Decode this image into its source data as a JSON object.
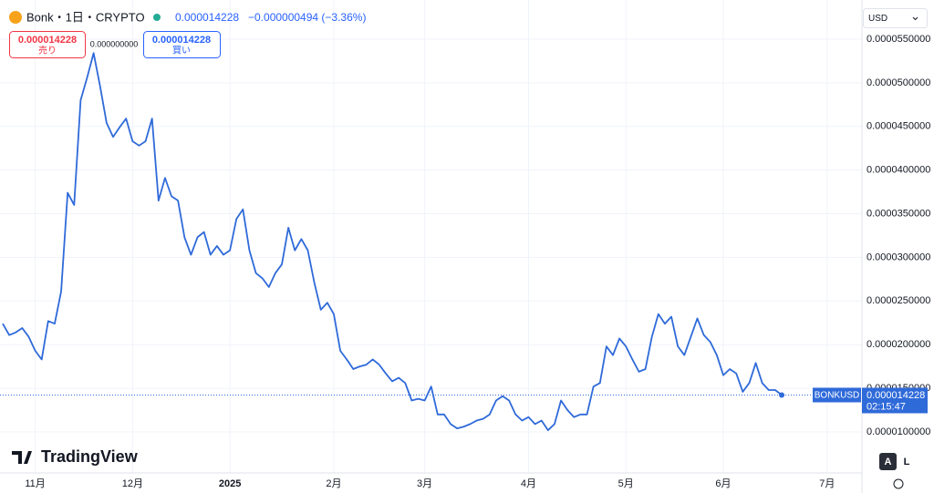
{
  "header": {
    "symbol": "Bonk・1日・CRYPTO",
    "price": "0.000014228",
    "change": "−0.000000494 (−3.36%)",
    "sell_price": "0.000014228",
    "sell_label": "売り",
    "spread": "0.000000000",
    "buy_price": "0.000014228",
    "buy_label": "買い",
    "currency": "USD",
    "logo": "TradingView",
    "scale_auto": "A",
    "scale_log": "L"
  },
  "chart_data": {
    "type": "line",
    "categories": [
      null,
      null,
      null,
      null,
      null,
      "11月",
      null,
      null,
      null,
      null,
      null,
      null,
      null,
      null,
      null,
      null,
      null,
      null,
      null,
      null,
      "12月",
      null,
      null,
      null,
      null,
      null,
      null,
      null,
      null,
      null,
      null,
      null,
      null,
      null,
      null,
      "2025",
      null,
      null,
      null,
      null,
      null,
      null,
      null,
      null,
      null,
      null,
      null,
      null,
      null,
      null,
      null,
      "2月",
      null,
      null,
      null,
      null,
      null,
      null,
      null,
      null,
      null,
      null,
      null,
      null,
      null,
      "3月",
      null,
      null,
      null,
      null,
      null,
      null,
      null,
      null,
      null,
      null,
      null,
      null,
      null,
      null,
      null,
      "4月",
      null,
      null,
      null,
      null,
      null,
      null,
      null,
      null,
      null,
      null,
      null,
      null,
      null,
      null,
      "5月",
      null,
      null,
      null,
      null,
      null,
      null,
      null,
      null,
      null,
      null,
      null,
      null,
      null,
      null,
      "6月",
      null,
      null,
      null,
      null,
      null,
      null,
      null,
      null,
      null,
      null,
      null,
      null,
      null,
      null,
      null,
      "7月",
      null,
      null
    ],
    "series": [
      {
        "name": "BONKUSD",
        "color": "#2f6ad9",
        "values": [
          2.24e-05,
          2.11e-05,
          2.14e-05,
          2.19e-05,
          2.09e-05,
          1.93e-05,
          1.83e-05,
          2.27e-05,
          2.24e-05,
          2.61e-05,
          3.74e-05,
          3.6e-05,
          4.8e-05,
          5.06e-05,
          5.34e-05,
          4.96e-05,
          4.54e-05,
          4.38e-05,
          4.49e-05,
          4.59e-05,
          4.33e-05,
          4.28e-05,
          4.33e-05,
          4.59e-05,
          3.65e-05,
          3.91e-05,
          3.7e-05,
          3.65e-05,
          3.23e-05,
          3.03e-05,
          3.23e-05,
          3.29e-05,
          3.03e-05,
          3.13e-05,
          3.03e-05,
          3.08e-05,
          3.44e-05,
          3.55e-05,
          3.08e-05,
          2.82e-05,
          2.76e-05,
          2.66e-05,
          2.82e-05,
          2.92e-05,
          3.34e-05,
          3.08e-05,
          3.21e-05,
          3.08e-05,
          2.71e-05,
          2.4e-05,
          2.48e-05,
          2.35e-05,
          1.93e-05,
          1.83e-05,
          1.72e-05,
          1.75e-05,
          1.77e-05,
          1.83e-05,
          1.77e-05,
          1.67e-05,
          1.58e-05,
          1.62e-05,
          1.56e-05,
          1.36e-05,
          1.38e-05,
          1.36e-05,
          1.52e-05,
          1.2e-05,
          1.2e-05,
          1.09e-05,
          1.04e-05,
          1.06e-05,
          1.09e-05,
          1.13e-05,
          1.15e-05,
          1.2e-05,
          1.36e-05,
          1.41e-05,
          1.36e-05,
          1.2e-05,
          1.13e-05,
          1.17e-05,
          1.09e-05,
          1.13e-05,
          1.02e-05,
          1.09e-05,
          1.36e-05,
          1.25e-05,
          1.17e-05,
          1.2e-05,
          1.2e-05,
          1.52e-05,
          1.56e-05,
          1.98e-05,
          1.88e-05,
          2.07e-05,
          1.98e-05,
          1.83e-05,
          1.69e-05,
          1.72e-05,
          2.09e-05,
          2.35e-05,
          2.24e-05,
          2.32e-05,
          1.98e-05,
          1.88e-05,
          2.09e-05,
          2.3e-05,
          2.11e-05,
          2.03e-05,
          1.88e-05,
          1.65e-05,
          1.72e-05,
          1.67e-05,
          1.46e-05,
          1.56e-05,
          1.79e-05,
          1.56e-05,
          1.48e-05,
          1.48e-05,
          1.4228e-05,
          null,
          null,
          null,
          null,
          null,
          null,
          null,
          null,
          null
        ]
      }
    ],
    "ylim": [
      5.3e-06,
      5.89e-05
    ],
    "yticks": [
      {
        "value": 1e-05,
        "label": "0.0000100000"
      },
      {
        "value": 1.5e-05,
        "label": "0.0000150000"
      },
      {
        "value": 2e-05,
        "label": "0.0000200000"
      },
      {
        "value": 2.5e-05,
        "label": "0.0000250000"
      },
      {
        "value": 3e-05,
        "label": "0.0000300000"
      },
      {
        "value": 3.5e-05,
        "label": "0.0000350000"
      },
      {
        "value": 4e-05,
        "label": "0.0000400000"
      },
      {
        "value": 4.5e-05,
        "label": "0.0000450000"
      },
      {
        "value": 5e-05,
        "label": "0.0000500000"
      },
      {
        "value": 5.5e-05,
        "label": "0.0000550000"
      }
    ],
    "grid": true,
    "price_tag": {
      "symbol": "BONKUSD",
      "price": "0.000014228",
      "countdown": "02:15:47"
    }
  }
}
